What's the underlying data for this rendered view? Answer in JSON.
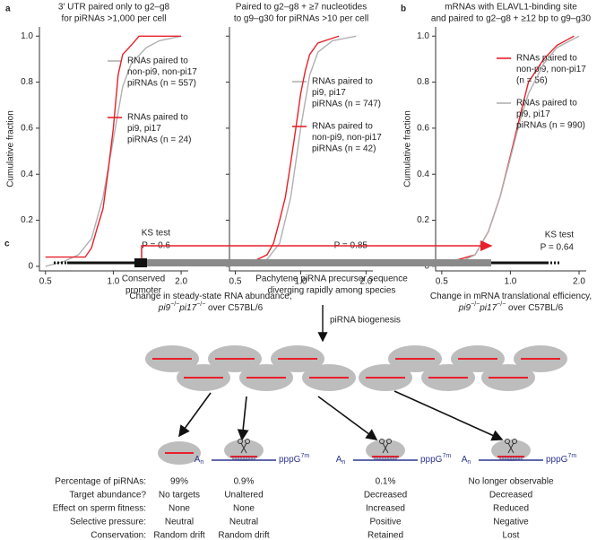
{
  "panel_labels": [
    "a",
    "b",
    "c"
  ],
  "chart_data": [
    {
      "type": "line",
      "title": [
        "3′ UTR paired only to g2–g8",
        "for piRNAs >1,000 per cell"
      ],
      "y_label": "Cumulative fraction",
      "x_label": [
        [
          {
            "text": "Change in steady-state RNA abundance,"
          }
        ],
        [
          {
            "text": "pi9",
            "style": "italic"
          },
          {
            "text": "−/−",
            "style": "sup"
          },
          {
            "text": "pi17",
            "style": "italic"
          },
          {
            "text": "−/−",
            "style": "sup"
          },
          {
            "text": " over C57BL/6"
          }
        ]
      ],
      "x_log": true,
      "xlim": [
        0.47,
        2.15
      ],
      "ylim": [
        -0.02,
        1.04
      ],
      "xticks": [
        0.5,
        {
          "value": 1,
          "label": "1.0"
        },
        {
          "value": 2,
          "label": "2.0"
        }
      ],
      "yticks": [
        0,
        0.2,
        0.4,
        0.6,
        0.8,
        {
          "value": 1,
          "label": "1.0"
        }
      ],
      "ytick_labels": true,
      "series": [
        {
          "name": [
            "RNAs paired to",
            "non-pi9, non-pi17",
            "piRNAs (n = 557)"
          ],
          "color": "#b0b0b0",
          "x": [
            0.5,
            0.6,
            0.7,
            0.8,
            0.9,
            1.0,
            1.1,
            1.2,
            1.4,
            1.6,
            2.0
          ],
          "values": [
            0,
            0.02,
            0.05,
            0.12,
            0.3,
            0.55,
            0.78,
            0.88,
            0.95,
            0.98,
            1.0
          ]
        },
        {
          "name": [
            "RNAs paired to",
            "pi9, pi17",
            "piRNAs (n = 24)"
          ],
          "color": "#e8202a",
          "x": [
            0.5,
            0.75,
            0.8,
            0.85,
            0.9,
            0.95,
            1.0,
            1.05,
            1.1,
            1.2,
            1.3,
            2.0
          ],
          "values": [
            0.04,
            0.04,
            0.08,
            0.17,
            0.25,
            0.42,
            0.6,
            0.83,
            0.92,
            0.96,
            1.0,
            1.0
          ]
        }
      ],
      "annotations": [
        "KS test",
        "P = 0.6"
      ]
    },
    {
      "type": "line",
      "title": [
        "Paired to g2–g8 + ≥7 nucleotides",
        "to g9–g30 for piRNAs >10 per cell"
      ],
      "x_log": true,
      "xlim": [
        0.47,
        2.15
      ],
      "ylim": [
        -0.02,
        1.04
      ],
      "xticks": [
        0.5,
        {
          "value": 1,
          "label": "1.0"
        },
        {
          "value": 2,
          "label": "2.0"
        }
      ],
      "yticks": [
        0,
        0.2,
        0.4,
        0.6,
        0.8,
        1
      ],
      "ytick_labels": false,
      "series": [
        {
          "name": [
            "RNAs paired to",
            "pi9, pi17",
            "piRNAs (n = 747)"
          ],
          "color": "#b0b0b0",
          "x": [
            0.6,
            0.7,
            0.8,
            0.9,
            1.0,
            1.1,
            1.2,
            1.4,
            1.8
          ],
          "values": [
            0,
            0.03,
            0.1,
            0.3,
            0.6,
            0.83,
            0.93,
            0.98,
            1.0
          ]
        },
        {
          "name": [
            "RNAs paired to",
            "non-pi9, non-pi17",
            "piRNAs (n = 42)"
          ],
          "color": "#e8202a",
          "x": [
            0.6,
            0.7,
            0.75,
            0.8,
            0.85,
            0.9,
            0.95,
            1.0,
            1.05,
            1.1,
            1.2,
            1.5
          ],
          "values": [
            0.02,
            0.05,
            0.1,
            0.2,
            0.3,
            0.45,
            0.6,
            0.75,
            0.85,
            0.92,
            0.97,
            1.0
          ]
        }
      ],
      "annotations": [
        "P = 0.85"
      ]
    },
    {
      "type": "line",
      "title": [
        "mRNAs with ELAVL1-binding site",
        "and paired to g2–g8 + ≥12 bp to g9–g30"
      ],
      "y_label": "Cumulative fraction",
      "x_label": [
        [
          {
            "text": "Change in mRNA translational efficiency,"
          }
        ],
        [
          {
            "text": "pi9",
            "style": "italic"
          },
          {
            "text": "−/−",
            "style": "sup"
          },
          {
            "text": "pi17",
            "style": "italic"
          },
          {
            "text": "−/−",
            "style": "sup"
          },
          {
            "text": " over C57BL/6"
          }
        ]
      ],
      "x_log": true,
      "xlim": [
        0.47,
        2.15
      ],
      "ylim": [
        -0.02,
        1.04
      ],
      "xticks": [
        0.5,
        {
          "value": 1,
          "label": "1.0"
        },
        {
          "value": 2,
          "label": "2.0"
        }
      ],
      "yticks": [
        0,
        0.2,
        0.4,
        0.6,
        0.8,
        {
          "value": 1,
          "label": "1.0"
        }
      ],
      "ytick_labels": true,
      "series": [
        {
          "name": [
            "RNAs paired to",
            "non-pi9, non-pi17",
            "(n = 56)"
          ],
          "color": "#e8202a",
          "x": [
            0.55,
            0.7,
            0.8,
            0.9,
            1.0,
            1.1,
            1.2,
            1.4,
            1.6,
            1.9
          ],
          "values": [
            0.02,
            0.05,
            0.15,
            0.3,
            0.48,
            0.65,
            0.8,
            0.9,
            0.96,
            1.0
          ]
        },
        {
          "name": [
            "RNAs paired to",
            "pi9, pi17",
            "piRNAs (n = 990)"
          ],
          "color": "#b0b0b0",
          "x": [
            0.55,
            0.7,
            0.8,
            0.9,
            1.0,
            1.1,
            1.2,
            1.4,
            1.6,
            2.0
          ],
          "values": [
            0,
            0.05,
            0.15,
            0.3,
            0.47,
            0.63,
            0.75,
            0.88,
            0.95,
            1.0
          ]
        }
      ],
      "annotations": [
        "KS test",
        "P = 0.64"
      ]
    }
  ],
  "diagram": {
    "promoter_label": [
      "Conserved",
      "promoter"
    ],
    "precursor_label": [
      "Pachytene piRNA precursor sequence",
      "diverging rapidly among species"
    ],
    "biogenesis_label": "piRNA biogenesis",
    "substrate": {
      "tail": "A",
      "tail_sub": "n",
      "cap": "pppG",
      "cap_sup": "7m"
    },
    "rows": [
      {
        "label": "Percentage of piRNAs:",
        "values": [
          "99%",
          "0.9%",
          "0.1%",
          "No longer observable"
        ]
      },
      {
        "label": "Target abundance?",
        "values": [
          "No targets",
          "Unaltered",
          "Decreased",
          "Decreased"
        ]
      },
      {
        "label": "Effect on sperm fitness:",
        "values": [
          "None",
          "None",
          "Increased",
          "Reduced"
        ]
      },
      {
        "label": "Selective pressure:",
        "values": [
          "Neutral",
          "Neutral",
          "Positive",
          "Negative"
        ]
      },
      {
        "label": "Conservation:",
        "values": [
          "Random drift",
          "Random drift",
          "Retained",
          "Lost"
        ]
      }
    ]
  }
}
